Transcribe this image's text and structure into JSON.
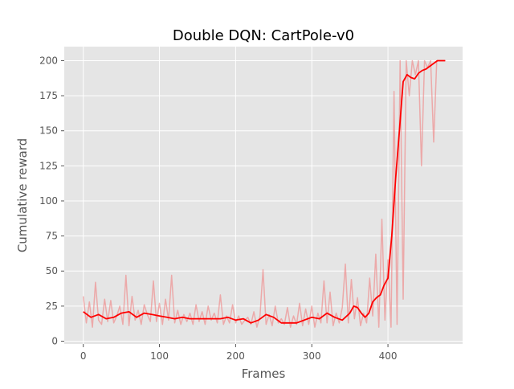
{
  "chart_data": {
    "type": "line",
    "title": "Double DQN: CartPole-v0",
    "xlabel": "Frames",
    "ylabel": "Cumulative reward",
    "xlim": [
      -25,
      498
    ],
    "ylim": [
      -2,
      210
    ],
    "xticks": [
      0,
      100,
      200,
      300,
      400
    ],
    "yticks": [
      0,
      25,
      50,
      75,
      100,
      125,
      150,
      175,
      200
    ],
    "grid": true,
    "background": "#e5e5e5",
    "series": [
      {
        "role": "raw",
        "color": "#f08080",
        "opacity": 0.6,
        "x": [
          0,
          4,
          8,
          12,
          16,
          20,
          24,
          28,
          32,
          36,
          40,
          44,
          48,
          52,
          56,
          60,
          64,
          68,
          72,
          76,
          80,
          84,
          88,
          92,
          96,
          100,
          104,
          108,
          112,
          116,
          120,
          124,
          128,
          132,
          136,
          140,
          144,
          148,
          152,
          156,
          160,
          164,
          168,
          172,
          176,
          180,
          184,
          188,
          192,
          196,
          200,
          204,
          208,
          212,
          216,
          220,
          224,
          228,
          232,
          236,
          240,
          244,
          248,
          252,
          256,
          260,
          264,
          268,
          272,
          276,
          280,
          284,
          288,
          292,
          296,
          300,
          304,
          308,
          312,
          316,
          320,
          324,
          328,
          332,
          336,
          340,
          344,
          348,
          352,
          356,
          360,
          364,
          368,
          372,
          376,
          380,
          384,
          388,
          392,
          396,
          400,
          404,
          408,
          412,
          416,
          420,
          424,
          428,
          432,
          436,
          440,
          444,
          448,
          452,
          456,
          460,
          464,
          468,
          472,
          476
        ],
        "y": [
          32,
          13,
          28,
          10,
          42,
          15,
          12,
          30,
          14,
          29,
          13,
          18,
          25,
          12,
          47,
          11,
          32,
          15,
          22,
          12,
          26,
          19,
          14,
          43,
          14,
          27,
          12,
          30,
          15,
          47,
          13,
          22,
          12,
          19,
          14,
          20,
          12,
          26,
          14,
          21,
          12,
          25,
          15,
          20,
          13,
          33,
          12,
          18,
          13,
          26,
          13,
          18,
          12,
          15,
          17,
          12,
          21,
          10,
          18,
          51,
          12,
          19,
          11,
          25,
          13,
          16,
          12,
          24,
          10,
          18,
          12,
          27,
          11,
          23,
          12,
          25,
          10,
          20,
          13,
          43,
          13,
          35,
          11,
          20,
          13,
          24,
          55,
          13,
          44,
          16,
          31,
          11,
          20,
          13,
          45,
          18,
          62,
          10,
          87,
          15,
          58,
          10,
          178,
          12,
          200,
          30,
          200,
          175,
          200,
          190,
          200,
          125,
          200,
          195,
          200,
          142,
          200,
          200,
          200,
          200
        ]
      },
      {
        "role": "smoothed",
        "color": "#ff0000",
        "x": [
          0,
          10,
          20,
          30,
          40,
          50,
          60,
          70,
          80,
          90,
          100,
          110,
          120,
          130,
          140,
          150,
          160,
          170,
          180,
          190,
          200,
          210,
          220,
          230,
          240,
          250,
          260,
          270,
          280,
          290,
          300,
          310,
          320,
          330,
          340,
          350,
          355,
          360,
          365,
          370,
          375,
          380,
          385,
          390,
          395,
          400,
          405,
          410,
          415,
          420,
          425,
          430,
          435,
          440,
          445,
          450,
          455,
          460,
          465,
          470,
          475
        ],
        "y": [
          21,
          17,
          19,
          16,
          17,
          20,
          21,
          17,
          20,
          19,
          18,
          17,
          16,
          17,
          16,
          16,
          16,
          16,
          16,
          17,
          15,
          16,
          13,
          15,
          19,
          17,
          13,
          13,
          13,
          15,
          17,
          16,
          20,
          17,
          15,
          20,
          25,
          24,
          20,
          17,
          20,
          28,
          31,
          33,
          40,
          45,
          75,
          115,
          150,
          185,
          190,
          188,
          187,
          191,
          193,
          194,
          196,
          198,
          200,
          200,
          200
        ]
      }
    ]
  }
}
